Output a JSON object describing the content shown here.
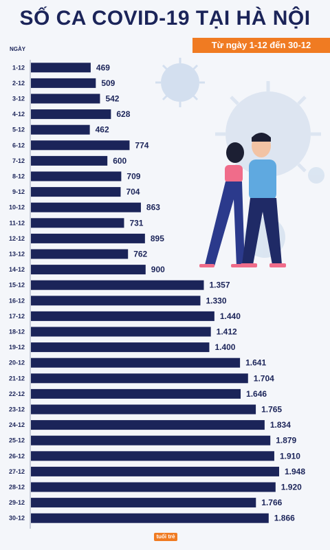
{
  "header": {
    "title": "SỐ CA COVID-19 TẠI HÀ NỘI",
    "subtitle": "Từ ngày 1-12 đến 30-12"
  },
  "brand": {
    "logo_text": "tuổi trẻ"
  },
  "colors": {
    "bar": "#1b2459",
    "accent": "#f07b22",
    "background": "#f4f6fa"
  },
  "chart_data": {
    "type": "bar",
    "orientation": "horizontal",
    "ylabel": "NGÀY",
    "categories": [
      "1-12",
      "2-12",
      "3-12",
      "4-12",
      "5-12",
      "6-12",
      "7-12",
      "8-12",
      "9-12",
      "10-12",
      "11-12",
      "12-12",
      "13-12",
      "14-12",
      "15-12",
      "16-12",
      "17-12",
      "18-12",
      "19-12",
      "20-12",
      "21-12",
      "22-12",
      "23-12",
      "24-12",
      "25-12",
      "26-12",
      "27-12",
      "28-12",
      "29-12",
      "30-12"
    ],
    "values": [
      469,
      509,
      542,
      628,
      462,
      774,
      600,
      709,
      704,
      863,
      731,
      895,
      762,
      900,
      1357,
      1330,
      1440,
      1412,
      1400,
      1641,
      1704,
      1646,
      1765,
      1834,
      1879,
      1910,
      1948,
      1920,
      1766,
      1866
    ],
    "value_labels": [
      "469",
      "509",
      "542",
      "628",
      "462",
      "774",
      "600",
      "709",
      "704",
      "863",
      "731",
      "895",
      "762",
      "900",
      "1.357",
      "1.330",
      "1.440",
      "1.412",
      "1.400",
      "1.641",
      "1.704",
      "1.646",
      "1.765",
      "1.834",
      "1.879",
      "1.910",
      "1.948",
      "1.920",
      "1.766",
      "1.866"
    ],
    "grid": false,
    "legend": "none"
  }
}
